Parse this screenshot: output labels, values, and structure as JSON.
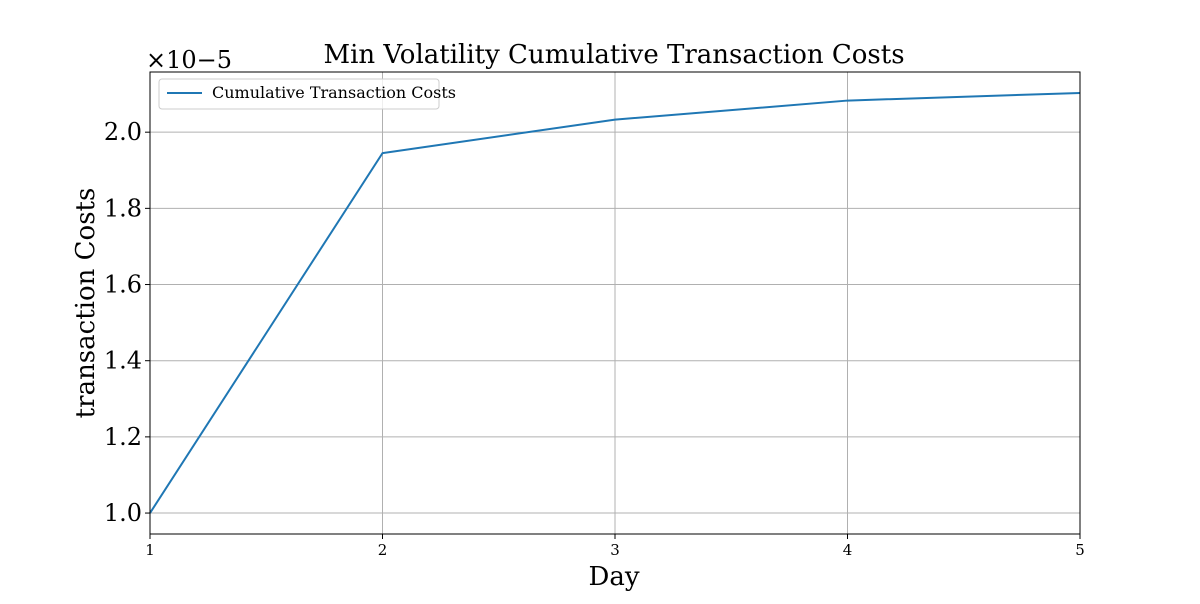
{
  "chart_data": {
    "type": "line",
    "title": "Min Volatility Cumulative Transaction Costs",
    "xlabel": "Day",
    "ylabel": "transaction Costs",
    "y_offset_text": "×10−5",
    "x": [
      1,
      2,
      3,
      4,
      5
    ],
    "series": [
      {
        "name": "Cumulative Transaction Costs",
        "values": [
          1.0,
          1.945,
          2.033,
          2.083,
          2.103
        ],
        "color": "#1f77b4"
      }
    ],
    "x_ticks": [
      "1",
      "2",
      "3",
      "4",
      "5"
    ],
    "y_ticks": [
      "1.0",
      "1.2",
      "1.4",
      "1.6",
      "1.8",
      "2.0"
    ],
    "xlim": [
      1,
      5
    ],
    "ylim": [
      0.945,
      2.158
    ],
    "grid": true,
    "legend_position": "upper-left"
  },
  "colors": {
    "line": "#1f77b4",
    "grid": "#b0b0b0",
    "axes": "#000000"
  }
}
